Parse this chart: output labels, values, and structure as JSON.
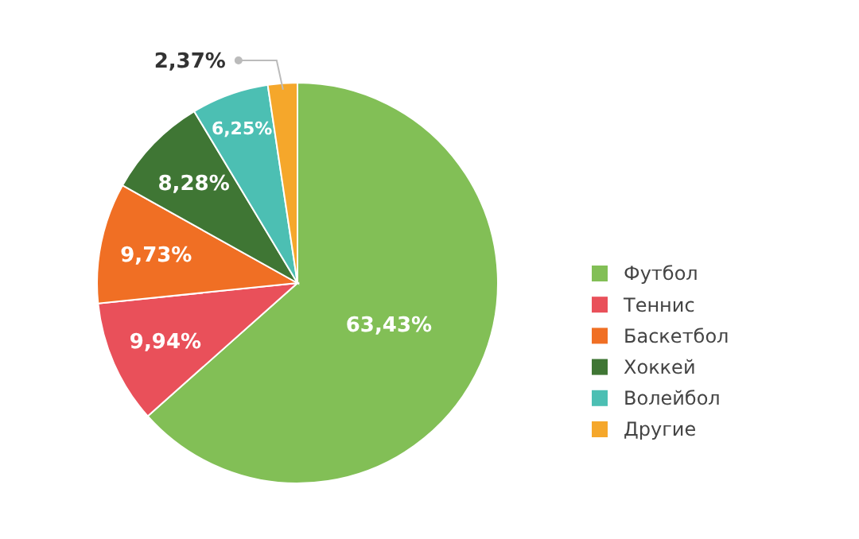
{
  "chart_data": {
    "type": "pie",
    "categories": [
      "Футбол",
      "Теннис",
      "Баскетбол",
      "Хоккей",
      "Волейбол",
      "Другие"
    ],
    "values": [
      63.43,
      9.94,
      9.73,
      8.28,
      6.25,
      2.37
    ],
    "colors": [
      "#82bf56",
      "#e9505a",
      "#f06f24",
      "#3f7634",
      "#4cbfb3",
      "#f5a72b"
    ],
    "value_labels": [
      "63,43%",
      "9,94%",
      "9,73%",
      "8,28%",
      "6,25%",
      "2,37%"
    ],
    "legend": "right"
  }
}
